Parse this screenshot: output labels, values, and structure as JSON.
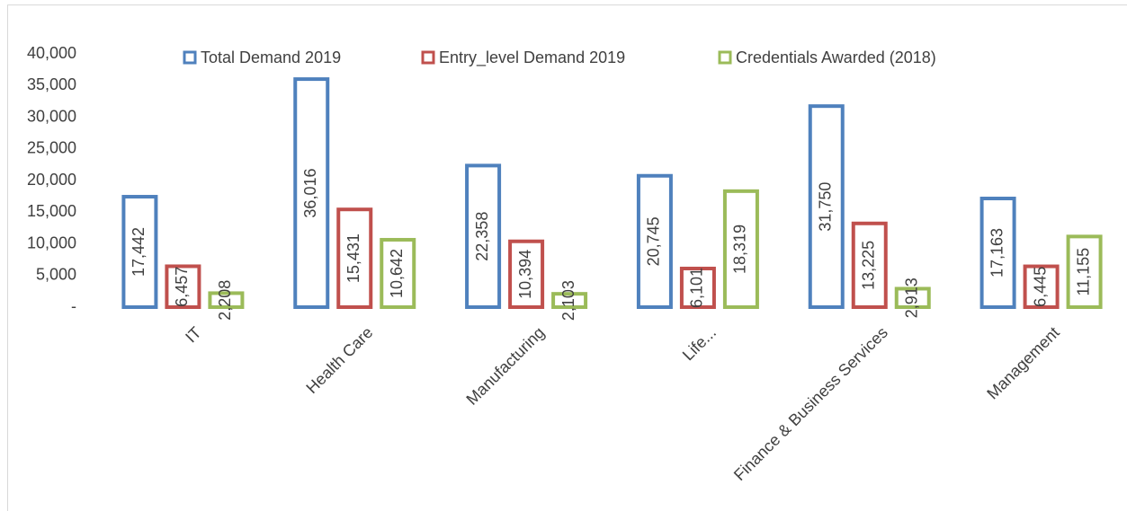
{
  "chart_data": {
    "type": "bar",
    "categories": [
      "IT",
      "Health Care",
      "Manufacturing",
      "Life...",
      "Finance & Business Services",
      "Management"
    ],
    "series": [
      {
        "name": "Total Demand 2019",
        "color": "#4f81bd",
        "values": [
          17442,
          36016,
          22358,
          20745,
          31750,
          17163
        ],
        "value_labels": [
          "17,442",
          "36,016",
          "22,358",
          "20,745",
          "31,750",
          "17,163"
        ]
      },
      {
        "name": "Entry_level Demand  2019",
        "color": "#c0504d",
        "values": [
          6457,
          15431,
          10394,
          6101,
          13225,
          6445
        ],
        "value_labels": [
          "6,457",
          "15,431",
          "10,394",
          "6,101",
          "13,225",
          "6,445"
        ]
      },
      {
        "name": "Credentials Awarded (2018)",
        "color": "#9bbb59",
        "values": [
          2208,
          10642,
          2103,
          18319,
          2913,
          11155
        ],
        "value_labels": [
          "2,208",
          "10,642",
          "2,103",
          "18,319",
          "2,913",
          "11,155"
        ]
      }
    ],
    "ylim": [
      0,
      40000
    ],
    "yticks": [
      {
        "value": 0,
        "label": "-"
      },
      {
        "value": 5000,
        "label": "5,000"
      },
      {
        "value": 10000,
        "label": "10,000"
      },
      {
        "value": 15000,
        "label": "15,000"
      },
      {
        "value": 20000,
        "label": "20,000"
      },
      {
        "value": 25000,
        "label": "25,000"
      },
      {
        "value": 30000,
        "label": "30,000"
      },
      {
        "value": 35000,
        "label": "35,000"
      },
      {
        "value": 40000,
        "label": "40,000"
      }
    ],
    "legend": "top"
  }
}
